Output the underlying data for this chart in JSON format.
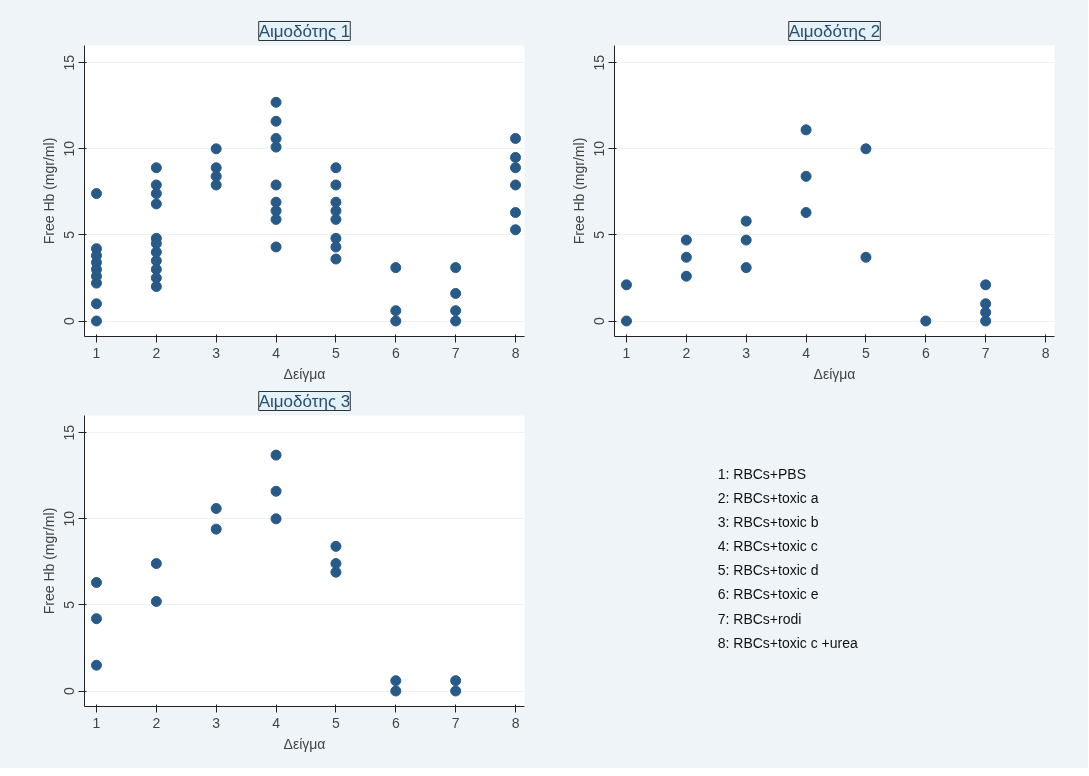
{
  "chart_data": [
    {
      "type": "scatter",
      "title": "Αιμοδότης 1",
      "xlabel": "Δείγμα",
      "ylabel": "Free Hb (mgr/ml)",
      "marker": "circle",
      "grid": "y",
      "x": [
        1,
        1,
        1,
        1,
        1,
        1,
        1,
        1,
        1,
        2,
        2,
        2,
        2,
        2,
        2,
        2,
        2,
        2,
        2,
        2,
        3,
        3,
        3,
        3,
        4,
        4,
        4,
        4,
        4,
        4,
        4,
        4,
        4,
        5,
        5,
        5,
        5,
        5,
        5,
        5,
        5,
        6,
        6,
        6,
        7,
        7,
        7,
        7,
        8,
        8,
        8,
        8,
        8,
        8
      ],
      "series": [
        {
          "color": "#285a88",
          "values": [
            0,
            1,
            2.2,
            2.6,
            3,
            3.4,
            3.8,
            4.2,
            7.4,
            2,
            2.5,
            3,
            3.5,
            4,
            4.5,
            4.8,
            6.8,
            7.4,
            7.9,
            8.9,
            7.9,
            8.4,
            8.9,
            10,
            4.3,
            5.9,
            6.4,
            6.9,
            7.9,
            10.1,
            10.6,
            11.6,
            12.7,
            3.6,
            4.3,
            4.8,
            5.9,
            6.4,
            6.9,
            7.9,
            8.9,
            0,
            0.6,
            3.1,
            0,
            0.6,
            1.6,
            3.1,
            5.3,
            6.3,
            7.9,
            8.9,
            9.5,
            10.6
          ]
        }
      ],
      "xlim": [
        0.8,
        8.15
      ],
      "ylim": [
        -0.9,
        16
      ],
      "xticks": [
        1,
        2,
        3,
        4,
        5,
        6,
        7,
        8
      ],
      "yticks": [
        0,
        5,
        10,
        15
      ]
    },
    {
      "type": "scatter",
      "title": "Αιμοδότης 2",
      "xlabel": "Δείγμα",
      "ylabel": "Free Hb (mgr/ml)",
      "marker": "circle",
      "grid": "y",
      "x": [
        1,
        1,
        2,
        2,
        2,
        3,
        3,
        3,
        4,
        4,
        4,
        5,
        5,
        6,
        7,
        7,
        7,
        7
      ],
      "series": [
        {
          "color": "#285a88",
          "values": [
            0,
            2.1,
            2.6,
            3.7,
            4.7,
            3.1,
            4.7,
            5.8,
            6.3,
            8.4,
            11.1,
            3.7,
            10,
            0,
            0,
            0.5,
            1,
            2.1
          ]
        }
      ],
      "xlim": [
        0.8,
        8.15
      ],
      "ylim": [
        -0.9,
        16
      ],
      "xticks": [
        1,
        2,
        3,
        4,
        5,
        6,
        7,
        8
      ],
      "yticks": [
        0,
        5,
        10,
        15
      ]
    },
    {
      "type": "scatter",
      "title": "Αιμοδότης 3",
      "xlabel": "Δείγμα",
      "ylabel": "Free Hb (mgr/ml)",
      "marker": "circle",
      "grid": "y",
      "x": [
        1,
        1,
        1,
        2,
        2,
        3,
        3,
        4,
        4,
        4,
        5,
        5,
        5,
        6,
        6,
        7,
        7
      ],
      "series": [
        {
          "color": "#285a88",
          "values": [
            1.5,
            4.2,
            6.3,
            5.2,
            7.4,
            9.4,
            10.6,
            10,
            11.6,
            13.7,
            6.9,
            7.4,
            8.4,
            0,
            0.6,
            0,
            0.6
          ]
        }
      ],
      "xlim": [
        0.8,
        8.15
      ],
      "ylim": [
        -0.9,
        16
      ],
      "xticks": [
        1,
        2,
        3,
        4,
        5,
        6,
        7,
        8
      ],
      "yticks": [
        0,
        5,
        10,
        15
      ]
    },
    {
      "type": "other",
      "annotations": [
        "1: RBCs+PBS",
        "2: RBCs+toxic a",
        "3: RBCs+toxic b",
        "4: RBCs+toxic c",
        "5: RBCs+toxic d",
        "6: RBCs+toxic e",
        "7: RBCs+rodi",
        "8: RBCs+toxic c +urea"
      ]
    }
  ]
}
